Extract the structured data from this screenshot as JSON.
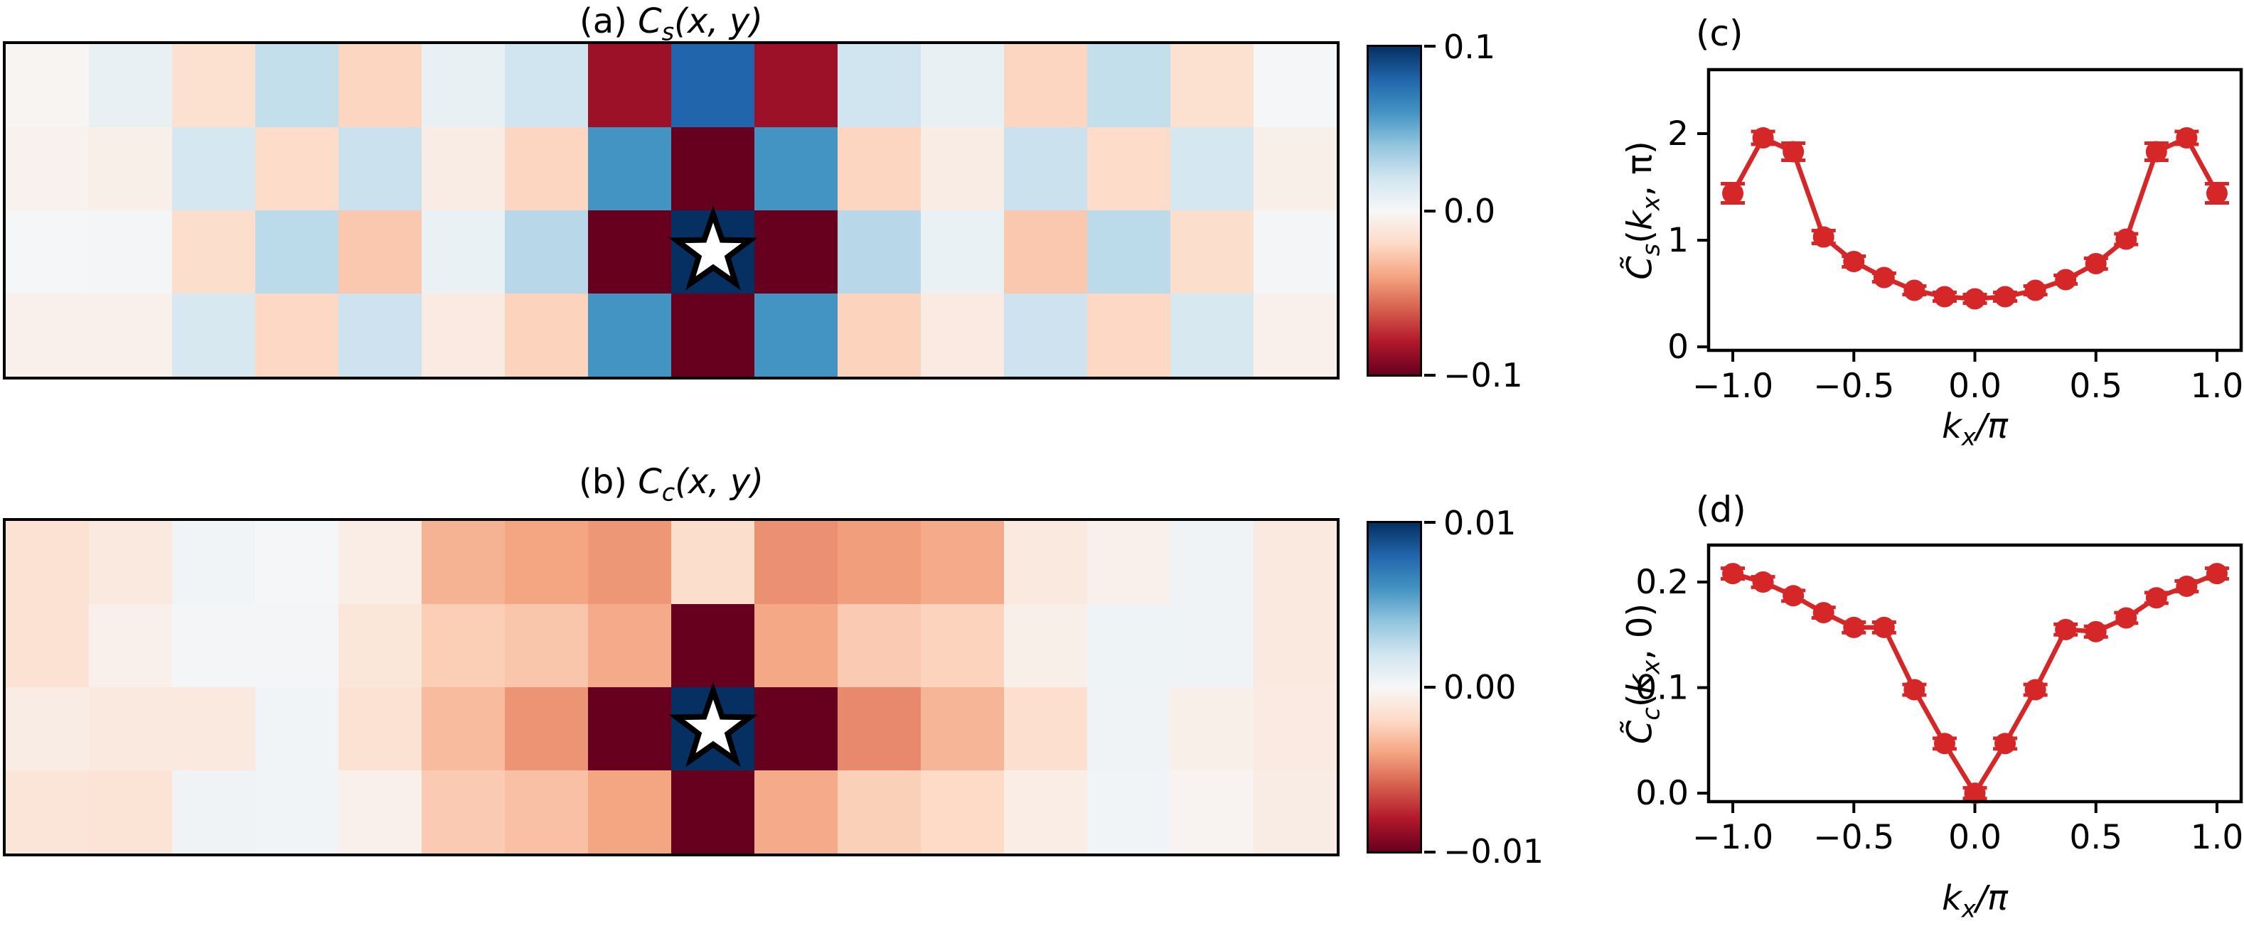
{
  "titles": {
    "a": {
      "prefix": "(a) ",
      "sym": "C",
      "sub": "s",
      "args": "(x, y)"
    },
    "b": {
      "prefix": "(b) ",
      "sym": "C",
      "sub": "c",
      "args": "(x, y)"
    },
    "c": {
      "corner": "(c)"
    },
    "d": {
      "corner": "(d)"
    }
  },
  "labels": {
    "c": {
      "y": {
        "csym": "C̃",
        "csub": "s",
        "open": "(",
        "k": "k",
        "ksub": "x",
        "rest": ", π)"
      },
      "x": {
        "sym": "k",
        "sub": "x",
        "end": "/π"
      }
    },
    "d": {
      "y": {
        "csym": "C̃",
        "csub": "c",
        "open": "(",
        "k": "k",
        "ksub": "x",
        "rest": ", 0)"
      },
      "x": {
        "sym": "k",
        "sub": "x",
        "end": "/π"
      }
    }
  },
  "colors": {
    "series_red": "#d62728",
    "star_fill": "#ffffff",
    "star_edge": "#000000",
    "axis": "#000000",
    "background": "#ffffff"
  },
  "chart_data": [
    {
      "id": "a",
      "type": "heatmap",
      "title": "(a) C_s(x, y)",
      "colormap": "RdBu",
      "vmin": -0.1,
      "vmax": 0.1,
      "nrows": 4,
      "ncols": 16,
      "values": [
        [
          -0.002,
          0.008,
          -0.016,
          0.024,
          -0.022,
          0.008,
          0.02,
          -0.086,
          0.08,
          -0.086,
          0.02,
          0.008,
          -0.022,
          0.024,
          -0.016,
          0.001
        ],
        [
          -0.004,
          -0.006,
          0.018,
          -0.019,
          0.022,
          -0.008,
          -0.022,
          0.06,
          -0.115,
          0.06,
          -0.022,
          -0.008,
          0.022,
          -0.019,
          0.018,
          -0.006
        ],
        [
          0.001,
          0.002,
          -0.018,
          0.027,
          -0.027,
          0.007,
          0.028,
          -0.115,
          0.13,
          -0.115,
          0.028,
          0.007,
          -0.027,
          0.027,
          -0.018,
          0.002
        ],
        [
          -0.005,
          -0.005,
          0.017,
          -0.021,
          0.021,
          -0.009,
          -0.023,
          0.06,
          -0.115,
          0.06,
          -0.023,
          -0.009,
          0.021,
          -0.021,
          0.017,
          -0.005
        ]
      ],
      "star_cell": {
        "row": 2,
        "col": 8
      },
      "colorbar_ticks": [
        "0.1",
        "0.0",
        "−0.1"
      ]
    },
    {
      "id": "b",
      "type": "heatmap",
      "title": "(b) C_c(x, y)",
      "colormap": "RdBu",
      "vmin": -0.01,
      "vmax": 0.01,
      "nrows": 4,
      "ncols": 16,
      "values": [
        [
          -0.0015,
          -0.001,
          0.0003,
          0.0001,
          -0.0007,
          -0.0035,
          -0.004,
          -0.0044,
          -0.0018,
          -0.0046,
          -0.0042,
          -0.0038,
          -0.001,
          -0.0005,
          0.0004,
          -0.001
        ],
        [
          -0.0015,
          -0.0005,
          0.0002,
          0.0002,
          -0.0012,
          -0.0025,
          -0.0028,
          -0.0038,
          -0.0125,
          -0.0039,
          -0.0026,
          -0.0023,
          -0.0006,
          0.0005,
          0.0004,
          -0.001
        ],
        [
          -0.0008,
          -0.001,
          -0.001,
          0.0003,
          -0.0015,
          -0.0032,
          -0.0045,
          -0.0125,
          0.0125,
          -0.0125,
          -0.0048,
          -0.0034,
          -0.0017,
          0.0004,
          -0.0006,
          -0.0009
        ],
        [
          -0.0013,
          -0.0014,
          0.0004,
          0.0003,
          -0.0005,
          -0.0026,
          -0.003,
          -0.004,
          -0.0125,
          -0.0038,
          -0.0024,
          -0.002,
          -0.0007,
          0.0003,
          -0.0003,
          -0.0008
        ]
      ],
      "star_cell": {
        "row": 2,
        "col": 8
      },
      "colorbar_ticks": [
        "0.01",
        "0.00",
        "−0.01"
      ]
    },
    {
      "id": "c",
      "type": "line",
      "title": "(c)",
      "ylabel": "C̃_s(k_x, π)",
      "xlabel": "k_x/π",
      "series_color": "#d62728",
      "x": [
        -1.0,
        -0.875,
        -0.75,
        -0.625,
        -0.5,
        -0.375,
        -0.25,
        -0.125,
        0.0,
        0.125,
        0.25,
        0.375,
        0.5,
        0.625,
        0.75,
        0.875,
        1.0
      ],
      "y": [
        1.44,
        1.96,
        1.83,
        1.03,
        0.8,
        0.65,
        0.53,
        0.47,
        0.45,
        0.47,
        0.53,
        0.63,
        0.78,
        1.01,
        1.83,
        1.96,
        1.44
      ],
      "yerr": [
        0.09,
        0.06,
        0.08,
        0.06,
        0.05,
        0.04,
        0.04,
        0.04,
        0.04,
        0.04,
        0.04,
        0.04,
        0.05,
        0.05,
        0.08,
        0.06,
        0.09
      ],
      "xlim": [
        -1.1,
        1.1
      ],
      "ylim": [
        -0.033,
        2.6
      ],
      "xticks": [
        -1.0,
        -0.5,
        0.0,
        0.5,
        1.0
      ],
      "xtick_labels": [
        "−1.0",
        "−0.5",
        "0.0",
        "0.5",
        "1.0"
      ],
      "yticks": [
        0,
        1,
        2
      ],
      "ytick_labels": [
        "0",
        "1",
        "2"
      ],
      "grid": false,
      "legend": "none"
    },
    {
      "id": "d",
      "type": "line",
      "title": "(d)",
      "ylabel": "C̃_c(k_x, 0)",
      "xlabel": "k_x/π",
      "series_color": "#d62728",
      "x": [
        -1.0,
        -0.875,
        -0.75,
        -0.625,
        -0.5,
        -0.375,
        -0.25,
        -0.125,
        0.0,
        0.125,
        0.25,
        0.375,
        0.5,
        0.625,
        0.75,
        0.875,
        1.0
      ],
      "y": [
        0.208,
        0.2,
        0.187,
        0.171,
        0.157,
        0.157,
        0.098,
        0.047,
        0.0,
        0.047,
        0.098,
        0.155,
        0.153,
        0.166,
        0.185,
        0.196,
        0.208
      ],
      "yerr": [
        0.005,
        0.005,
        0.005,
        0.005,
        0.005,
        0.005,
        0.005,
        0.005,
        0.005,
        0.005,
        0.005,
        0.005,
        0.005,
        0.005,
        0.005,
        0.005,
        0.005
      ],
      "xlim": [
        -1.1,
        1.1
      ],
      "ylim": [
        -0.008,
        0.235
      ],
      "xticks": [
        -1.0,
        -0.5,
        0.0,
        0.5,
        1.0
      ],
      "xtick_labels": [
        "−1.0",
        "−0.5",
        "0.0",
        "0.5",
        "1.0"
      ],
      "yticks": [
        0.0,
        0.1,
        0.2
      ],
      "ytick_labels": [
        "0.0",
        "0.1",
        "0.2"
      ],
      "grid": false,
      "legend": "none"
    }
  ]
}
